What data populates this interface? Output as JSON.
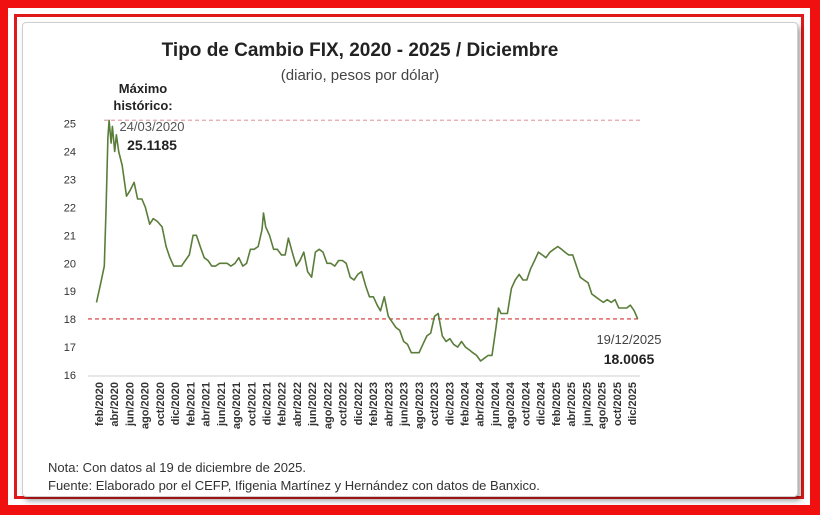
{
  "chart_data": {
    "type": "line",
    "title": "Tipo de Cambio FIX, 2020 - 2025 / Diciembre",
    "subtitle": "(diario, pesos por dólar)",
    "xlabel": "",
    "ylabel": "",
    "ylim": [
      16,
      25.2
    ],
    "yticks": [
      16,
      17,
      18,
      19,
      20,
      21,
      22,
      23,
      24,
      25
    ],
    "xlim": [
      "2020-02",
      "2025-12"
    ],
    "x_tick_labels": [
      "feb/2020",
      "abr/2020",
      "jun/2020",
      "ago/2020",
      "oct/2020",
      "dic/2020",
      "feb/2021",
      "abr/2021",
      "jun/2021",
      "ago/2021",
      "oct/2021",
      "dic/2021",
      "feb/2022",
      "abr/2022",
      "jun/2022",
      "ago/2022",
      "oct/2022",
      "dic/2022",
      "feb/2023",
      "abr/2023",
      "jun/2023",
      "ago/2023",
      "oct/2023",
      "dic/2023",
      "feb/2024",
      "abr/2024",
      "jun/2024",
      "ago/2024",
      "oct/2024",
      "dic/2024",
      "feb/2025",
      "abr/2025",
      "jun/2025",
      "ago/2025",
      "oct/2025",
      "dic/2025"
    ],
    "grid": false,
    "line_color": "#5a7d3a",
    "series": [
      {
        "name": "",
        "x": [
          "2020-02-03",
          "2020-02-20",
          "2020-03-05",
          "2020-03-12",
          "2020-03-19",
          "2020-03-24",
          "2020-04-01",
          "2020-04-06",
          "2020-04-15",
          "2020-04-22",
          "2020-05-01",
          "2020-05-15",
          "2020-06-01",
          "2020-06-15",
          "2020-07-01",
          "2020-07-15",
          "2020-08-01",
          "2020-08-15",
          "2020-09-01",
          "2020-09-15",
          "2020-10-01",
          "2020-10-20",
          "2020-11-05",
          "2020-11-20",
          "2020-12-05",
          "2020-12-20",
          "2021-01-05",
          "2021-01-20",
          "2021-02-05",
          "2021-02-20",
          "2021-03-05",
          "2021-03-20",
          "2021-04-05",
          "2021-04-20",
          "2021-05-05",
          "2021-05-20",
          "2021-06-05",
          "2021-06-20",
          "2021-07-05",
          "2021-07-20",
          "2021-08-05",
          "2021-08-20",
          "2021-09-05",
          "2021-09-20",
          "2021-10-05",
          "2021-10-20",
          "2021-11-05",
          "2021-11-20",
          "2021-11-26",
          "2021-12-05",
          "2021-12-20",
          "2022-01-05",
          "2022-01-20",
          "2022-02-05",
          "2022-02-20",
          "2022-03-05",
          "2022-03-20",
          "2022-04-05",
          "2022-04-20",
          "2022-05-05",
          "2022-05-20",
          "2022-06-05",
          "2022-06-20",
          "2022-07-05",
          "2022-07-20",
          "2022-08-05",
          "2022-08-20",
          "2022-09-05",
          "2022-09-20",
          "2022-10-05",
          "2022-10-20",
          "2022-11-05",
          "2022-11-20",
          "2022-12-05",
          "2022-12-20",
          "2023-01-05",
          "2023-01-20",
          "2023-02-05",
          "2023-02-20",
          "2023-03-05",
          "2023-03-20",
          "2023-04-05",
          "2023-04-20",
          "2023-05-05",
          "2023-05-20",
          "2023-06-05",
          "2023-06-20",
          "2023-07-05",
          "2023-07-20",
          "2023-08-05",
          "2023-08-20",
          "2023-09-05",
          "2023-09-20",
          "2023-10-05",
          "2023-10-20",
          "2023-11-05",
          "2023-11-20",
          "2023-12-05",
          "2023-12-20",
          "2024-01-05",
          "2024-01-20",
          "2024-02-05",
          "2024-02-20",
          "2024-03-05",
          "2024-03-20",
          "2024-04-05",
          "2024-04-20",
          "2024-05-05",
          "2024-05-20",
          "2024-06-05",
          "2024-06-15",
          "2024-06-25",
          "2024-07-05",
          "2024-07-20",
          "2024-08-05",
          "2024-08-20",
          "2024-09-05",
          "2024-09-20",
          "2024-10-05",
          "2024-10-20",
          "2024-11-05",
          "2024-11-20",
          "2024-12-05",
          "2024-12-20",
          "2025-01-05",
          "2025-01-20",
          "2025-02-05",
          "2025-02-20",
          "2025-03-05",
          "2025-03-20",
          "2025-04-05",
          "2025-04-20",
          "2025-05-05",
          "2025-05-20",
          "2025-06-05",
          "2025-06-20",
          "2025-07-05",
          "2025-07-20",
          "2025-08-05",
          "2025-08-20",
          "2025-09-05",
          "2025-09-20",
          "2025-10-05",
          "2025-10-20",
          "2025-11-05",
          "2025-11-20",
          "2025-12-05",
          "2025-12-19"
        ],
        "values": [
          18.6,
          19.3,
          19.9,
          22.0,
          24.5,
          25.1185,
          24.3,
          24.9,
          24.0,
          24.6,
          24.0,
          23.5,
          22.4,
          22.6,
          22.9,
          22.3,
          22.3,
          22.0,
          21.4,
          21.6,
          21.5,
          21.3,
          20.6,
          20.2,
          19.9,
          19.9,
          19.9,
          20.1,
          20.3,
          21.0,
          21.0,
          20.6,
          20.2,
          20.1,
          19.9,
          19.9,
          20.0,
          20.0,
          20.0,
          19.9,
          20.0,
          20.2,
          19.9,
          20.0,
          20.5,
          20.5,
          20.6,
          21.2,
          21.8,
          21.3,
          21.0,
          20.5,
          20.5,
          20.3,
          20.3,
          20.9,
          20.4,
          19.9,
          20.1,
          20.4,
          19.7,
          19.5,
          20.4,
          20.5,
          20.4,
          20.0,
          20.0,
          19.9,
          20.1,
          20.1,
          20.0,
          19.5,
          19.4,
          19.6,
          19.7,
          19.2,
          18.8,
          18.8,
          18.5,
          18.3,
          18.8,
          18.1,
          17.9,
          17.7,
          17.6,
          17.2,
          17.1,
          16.8,
          16.8,
          16.8,
          17.1,
          17.4,
          17.5,
          18.1,
          18.2,
          17.4,
          17.2,
          17.3,
          17.1,
          17.0,
          17.2,
          17.0,
          16.9,
          16.8,
          16.7,
          16.5,
          16.6,
          16.7,
          16.7,
          17.7,
          18.4,
          18.2,
          18.2,
          18.2,
          19.1,
          19.4,
          19.6,
          19.4,
          19.4,
          19.8,
          20.1,
          20.4,
          20.3,
          20.2,
          20.4,
          20.5,
          20.6,
          20.5,
          20.4,
          20.3,
          20.3,
          19.9,
          19.5,
          19.4,
          19.3,
          18.9,
          18.8,
          18.7,
          18.6,
          18.7,
          18.6,
          18.7,
          18.4,
          18.4,
          18.4,
          18.5,
          18.3,
          18.0065
        ]
      }
    ],
    "reference_lines": [
      {
        "value": 25.1185,
        "style": "dashed",
        "color": "#e8a4a8"
      },
      {
        "value": 18.0065,
        "style": "dashed",
        "color": "#d83030"
      }
    ],
    "annotations": {
      "max_heading_line1": "Máximo",
      "max_heading_line2": "histórico:",
      "max_date": "24/03/2020",
      "max_value": "25.1185",
      "last_date": "19/12/2025",
      "last_value": "18.0065"
    }
  },
  "notes": {
    "nota": "Nota: Con datos al 19 de diciembre de 2025.",
    "fuente": "Fuente: Elaborado por el CEFP, Ifigenia Martínez y Hernández con datos de Banxico."
  }
}
